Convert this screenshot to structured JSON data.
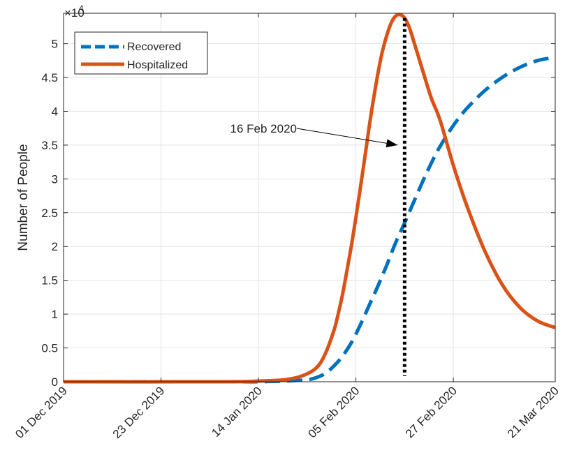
{
  "chart_data": {
    "type": "line",
    "title": "",
    "xlabel": "",
    "ylabel": "Number of People",
    "y_exponent_label": "×10",
    "y_exponent_power": "4",
    "x_tick_labels": [
      "01 Dec 2019",
      "23 Dec 2019",
      "14 Jan 2020",
      "05 Feb 2020",
      "27 Feb 2020",
      "21 Mar 2020"
    ],
    "x_tick_dates": [
      "2019-12-01",
      "2019-12-23",
      "2020-01-14",
      "2020-02-05",
      "2020-02-27",
      "2020-03-21"
    ],
    "y_tick_labels": [
      "0",
      "0.5",
      "1",
      "1.5",
      "2",
      "2.5",
      "3",
      "3.5",
      "4",
      "4.5",
      "5"
    ],
    "y_tick_values": [
      0,
      5000,
      10000,
      15000,
      20000,
      25000,
      30000,
      35000,
      40000,
      45000,
      50000
    ],
    "xlim": [
      "2019-12-01",
      "2020-03-21"
    ],
    "ylim": [
      0,
      54500
    ],
    "grid": true,
    "legend_position": "top-left",
    "series": [
      {
        "name": "Recovered",
        "color": "#0072BD",
        "style": "dashed",
        "x": [
          "2019-12-01",
          "2020-01-07",
          "2020-01-14",
          "2020-01-20",
          "2020-01-25",
          "2020-01-27",
          "2020-01-29",
          "2020-01-31",
          "2020-02-02",
          "2020-02-04",
          "2020-02-06",
          "2020-02-08",
          "2020-02-10",
          "2020-02-12",
          "2020-02-14",
          "2020-02-16",
          "2020-02-18",
          "2020-02-20",
          "2020-02-22",
          "2020-02-24",
          "2020-02-27",
          "2020-03-01",
          "2020-03-05",
          "2020-03-09",
          "2020-03-13",
          "2020-03-17",
          "2020-03-21"
        ],
        "y": [
          0,
          0,
          0,
          100,
          300,
          600,
          1200,
          2300,
          3800,
          5800,
          8400,
          11300,
          14200,
          17300,
          20600,
          23500,
          26500,
          29500,
          32300,
          34800,
          37900,
          40400,
          43000,
          45000,
          46500,
          47500,
          48000
        ]
      },
      {
        "name": "Hospitalized",
        "color": "#D95319",
        "style": "solid",
        "x": [
          "2019-12-01",
          "2020-01-07",
          "2020-01-14",
          "2020-01-20",
          "2020-01-24",
          "2020-01-27",
          "2020-01-29",
          "2020-01-31",
          "2020-02-01",
          "2020-02-02",
          "2020-02-03",
          "2020-02-04",
          "2020-02-05",
          "2020-02-06",
          "2020-02-07",
          "2020-02-08",
          "2020-02-09",
          "2020-02-10",
          "2020-02-11",
          "2020-02-12",
          "2020-02-13",
          "2020-02-14",
          "2020-02-15",
          "2020-02-16",
          "2020-02-17",
          "2020-02-18",
          "2020-02-20",
          "2020-02-22",
          "2020-02-24",
          "2020-02-27",
          "2020-03-01",
          "2020-03-05",
          "2020-03-09",
          "2020-03-13",
          "2020-03-17",
          "2020-03-21"
        ],
        "y": [
          0,
          0,
          100,
          300,
          900,
          2000,
          4000,
          7500,
          10000,
          13000,
          16500,
          20200,
          24300,
          28600,
          33100,
          37700,
          41900,
          45700,
          48900,
          51300,
          53100,
          54100,
          54300,
          53800,
          52500,
          50500,
          46200,
          42000,
          38700,
          32000,
          26100,
          19500,
          14400,
          11000,
          9000,
          8000
        ]
      }
    ],
    "annotations": [
      {
        "type": "vline",
        "x": "2020-02-16",
        "style": "dotted",
        "color": "#000000"
      },
      {
        "type": "text_arrow",
        "text": "16 Feb 2020",
        "point_to": {
          "x": "2020-02-16",
          "y": 35000
        }
      }
    ]
  }
}
